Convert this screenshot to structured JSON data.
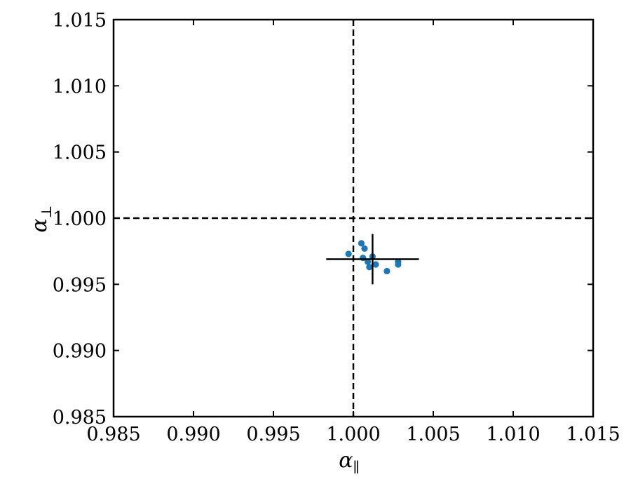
{
  "chart_data": {
    "type": "scatter",
    "title": "",
    "xlabel": "α",
    "xlabel_subscript": "∥",
    "ylabel": "α",
    "ylabel_subscript": "⊥",
    "xlim": [
      0.985,
      1.015
    ],
    "ylim": [
      0.985,
      1.015
    ],
    "x_ticks": [
      0.985,
      0.99,
      0.995,
      1.0,
      1.005,
      1.01,
      1.015
    ],
    "y_ticks": [
      0.985,
      0.99,
      0.995,
      1.0,
      1.005,
      1.01,
      1.015
    ],
    "x_tick_labels": [
      "0.985",
      "0.990",
      "0.995",
      "1.000",
      "1.005",
      "1.010",
      "1.015"
    ],
    "y_tick_labels": [
      "0.985",
      "0.990",
      "0.995",
      "1.000",
      "1.005",
      "1.010",
      "1.015"
    ],
    "grid": false,
    "legend": "none",
    "reference_lines": {
      "x": 1.0,
      "y": 1.0,
      "style": "dashed",
      "color": "#000000"
    },
    "points": {
      "color": "#1f77b4",
      "x": [
        0.9997,
        1.0005,
        1.0007,
        1.0006,
        1.0009,
        1.001,
        1.0012,
        1.0014,
        1.0021,
        1.0028,
        1.0028
      ],
      "y": [
        0.9973,
        0.9981,
        0.9977,
        0.997,
        0.9967,
        0.9963,
        0.9971,
        0.9965,
        0.996,
        0.9965,
        0.9967
      ]
    },
    "error_cross": {
      "color": "#000000",
      "x": 1.0012,
      "y": 0.9969,
      "xerr": 0.0029,
      "yerr": 0.0019
    }
  }
}
